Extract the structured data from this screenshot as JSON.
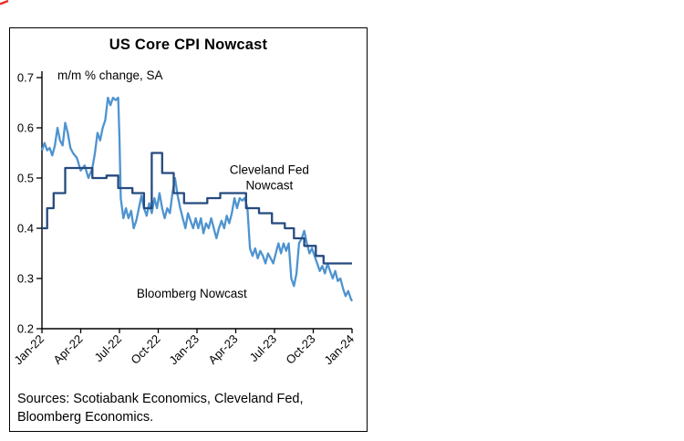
{
  "panel": {
    "title": "US Core CPI Nowcast",
    "subtitle": "m/m % change, SA",
    "sources_line1": "Sources: Scotiabank Economics, Cleveland Fed,",
    "sources_line2": "Bloomberg Economics."
  },
  "colors": {
    "cleveland": "#254a7f",
    "bloomberg": "#4e93cf",
    "axis": "#000000",
    "corner_mark": "#e8302a"
  },
  "chart_data": {
    "type": "line",
    "title": "US Core CPI Nowcast",
    "subtitle": "m/m % change, SA",
    "xlabel": "",
    "ylabel": "m/m % change, SA",
    "ylim": [
      0.2,
      0.7
    ],
    "ytick_step": 0.1,
    "yticks": [
      "0.2",
      "0.3",
      "0.4",
      "0.5",
      "0.6",
      "0.7"
    ],
    "xticks": [
      "Jan-22",
      "Apr-22",
      "Jul-22",
      "Oct-22",
      "Jan-23",
      "Apr-23",
      "Jul-23",
      "Oct-23",
      "Jan-24"
    ],
    "x_range_months": [
      0,
      24
    ],
    "grid": false,
    "legend_position": "in-plot-annotations",
    "series": [
      {
        "name": "Bloomberg Nowcast",
        "color": "#4e93cf",
        "style": "jagged-daily",
        "points": [
          [
            0,
            0.555
          ],
          [
            0.2,
            0.57
          ],
          [
            0.4,
            0.555
          ],
          [
            0.6,
            0.56
          ],
          [
            0.8,
            0.545
          ],
          [
            1.0,
            0.565
          ],
          [
            1.2,
            0.6
          ],
          [
            1.4,
            0.575
          ],
          [
            1.6,
            0.565
          ],
          [
            1.8,
            0.61
          ],
          [
            2.0,
            0.59
          ],
          [
            2.2,
            0.56
          ],
          [
            2.4,
            0.55
          ],
          [
            2.7,
            0.54
          ],
          [
            3.0,
            0.515
          ],
          [
            3.3,
            0.525
          ],
          [
            3.6,
            0.5
          ],
          [
            3.9,
            0.52
          ],
          [
            4.1,
            0.55
          ],
          [
            4.3,
            0.59
          ],
          [
            4.5,
            0.575
          ],
          [
            4.7,
            0.6
          ],
          [
            4.9,
            0.615
          ],
          [
            5.1,
            0.66
          ],
          [
            5.3,
            0.645
          ],
          [
            5.5,
            0.66
          ],
          [
            5.7,
            0.655
          ],
          [
            5.9,
            0.66
          ],
          [
            6.0,
            0.58
          ],
          [
            6.1,
            0.46
          ],
          [
            6.3,
            0.42
          ],
          [
            6.5,
            0.44
          ],
          [
            6.7,
            0.42
          ],
          [
            6.9,
            0.435
          ],
          [
            7.1,
            0.4
          ],
          [
            7.3,
            0.415
          ],
          [
            7.5,
            0.44
          ],
          [
            7.7,
            0.465
          ],
          [
            7.9,
            0.44
          ],
          [
            8.1,
            0.425
          ],
          [
            8.3,
            0.45
          ],
          [
            8.5,
            0.43
          ],
          [
            8.7,
            0.46
          ],
          [
            8.9,
            0.44
          ],
          [
            9.1,
            0.47
          ],
          [
            9.3,
            0.44
          ],
          [
            9.5,
            0.42
          ],
          [
            9.7,
            0.44
          ],
          [
            9.9,
            0.43
          ],
          [
            10.1,
            0.47
          ],
          [
            10.3,
            0.5
          ],
          [
            10.5,
            0.465
          ],
          [
            10.7,
            0.44
          ],
          [
            10.9,
            0.42
          ],
          [
            11.1,
            0.4
          ],
          [
            11.3,
            0.43
          ],
          [
            11.5,
            0.415
          ],
          [
            11.7,
            0.4
          ],
          [
            11.9,
            0.42
          ],
          [
            12.1,
            0.4
          ],
          [
            12.3,
            0.42
          ],
          [
            12.5,
            0.39
          ],
          [
            12.7,
            0.41
          ],
          [
            12.9,
            0.4
          ],
          [
            13.1,
            0.42
          ],
          [
            13.3,
            0.4
          ],
          [
            13.5,
            0.38
          ],
          [
            13.7,
            0.4
          ],
          [
            13.9,
            0.415
          ],
          [
            14.1,
            0.4
          ],
          [
            14.3,
            0.425
          ],
          [
            14.5,
            0.41
          ],
          [
            14.7,
            0.43
          ],
          [
            14.9,
            0.46
          ],
          [
            15.1,
            0.44
          ],
          [
            15.3,
            0.46
          ],
          [
            15.5,
            0.455
          ],
          [
            15.7,
            0.46
          ],
          [
            15.9,
            0.44
          ],
          [
            16.1,
            0.36
          ],
          [
            16.3,
            0.345
          ],
          [
            16.5,
            0.36
          ],
          [
            16.7,
            0.34
          ],
          [
            16.9,
            0.355
          ],
          [
            17.1,
            0.345
          ],
          [
            17.3,
            0.33
          ],
          [
            17.5,
            0.35
          ],
          [
            17.7,
            0.34
          ],
          [
            17.9,
            0.33
          ],
          [
            18.1,
            0.35
          ],
          [
            18.3,
            0.37
          ],
          [
            18.5,
            0.35
          ],
          [
            18.7,
            0.37
          ],
          [
            18.9,
            0.355
          ],
          [
            19.1,
            0.37
          ],
          [
            19.3,
            0.3
          ],
          [
            19.5,
            0.285
          ],
          [
            19.7,
            0.31
          ],
          [
            19.9,
            0.37
          ],
          [
            20.1,
            0.38
          ],
          [
            20.3,
            0.395
          ],
          [
            20.5,
            0.37
          ],
          [
            20.7,
            0.35
          ],
          [
            20.9,
            0.36
          ],
          [
            21.1,
            0.345
          ],
          [
            21.3,
            0.33
          ],
          [
            21.5,
            0.315
          ],
          [
            21.7,
            0.325
          ],
          [
            21.9,
            0.31
          ],
          [
            22.1,
            0.33
          ],
          [
            22.3,
            0.315
          ],
          [
            22.5,
            0.3
          ],
          [
            22.7,
            0.315
          ],
          [
            22.9,
            0.295
          ],
          [
            23.1,
            0.3
          ],
          [
            23.3,
            0.28
          ],
          [
            23.5,
            0.265
          ],
          [
            23.7,
            0.275
          ],
          [
            23.9,
            0.26
          ],
          [
            24,
            0.255
          ]
        ]
      },
      {
        "name": "Cleveland Fed Nowcast",
        "color": "#254a7f",
        "style": "step",
        "points": [
          [
            0,
            0.4
          ],
          [
            0.4,
            0.4
          ],
          [
            0.4,
            0.44
          ],
          [
            0.9,
            0.44
          ],
          [
            0.9,
            0.47
          ],
          [
            1.8,
            0.47
          ],
          [
            1.8,
            0.52
          ],
          [
            3.9,
            0.52
          ],
          [
            3.9,
            0.5
          ],
          [
            5.0,
            0.5
          ],
          [
            5.0,
            0.505
          ],
          [
            5.9,
            0.505
          ],
          [
            5.9,
            0.48
          ],
          [
            7.0,
            0.48
          ],
          [
            7.0,
            0.47
          ],
          [
            7.9,
            0.47
          ],
          [
            7.9,
            0.44
          ],
          [
            8.5,
            0.44
          ],
          [
            8.5,
            0.55
          ],
          [
            9.3,
            0.55
          ],
          [
            9.3,
            0.51
          ],
          [
            10.2,
            0.51
          ],
          [
            10.2,
            0.47
          ],
          [
            11.0,
            0.47
          ],
          [
            11.0,
            0.45
          ],
          [
            12.8,
            0.45
          ],
          [
            12.8,
            0.46
          ],
          [
            13.8,
            0.46
          ],
          [
            13.8,
            0.47
          ],
          [
            15.8,
            0.47
          ],
          [
            15.8,
            0.44
          ],
          [
            16.8,
            0.44
          ],
          [
            16.8,
            0.43
          ],
          [
            17.8,
            0.43
          ],
          [
            17.8,
            0.41
          ],
          [
            18.8,
            0.41
          ],
          [
            18.8,
            0.4
          ],
          [
            19.5,
            0.4
          ],
          [
            19.5,
            0.38
          ],
          [
            20.3,
            0.38
          ],
          [
            20.3,
            0.365
          ],
          [
            21.2,
            0.365
          ],
          [
            21.2,
            0.345
          ],
          [
            21.8,
            0.345
          ],
          [
            21.8,
            0.33
          ],
          [
            24,
            0.33
          ]
        ]
      }
    ],
    "annotations": [
      {
        "text": [
          "Cleveland Fed",
          "Nowcast"
        ],
        "x": 17.6,
        "y": 0.508,
        "color": "#254a7f"
      },
      {
        "text": [
          "Bloomberg Nowcast"
        ],
        "x": 11.6,
        "y": 0.262,
        "color": "#4e93cf"
      }
    ]
  }
}
